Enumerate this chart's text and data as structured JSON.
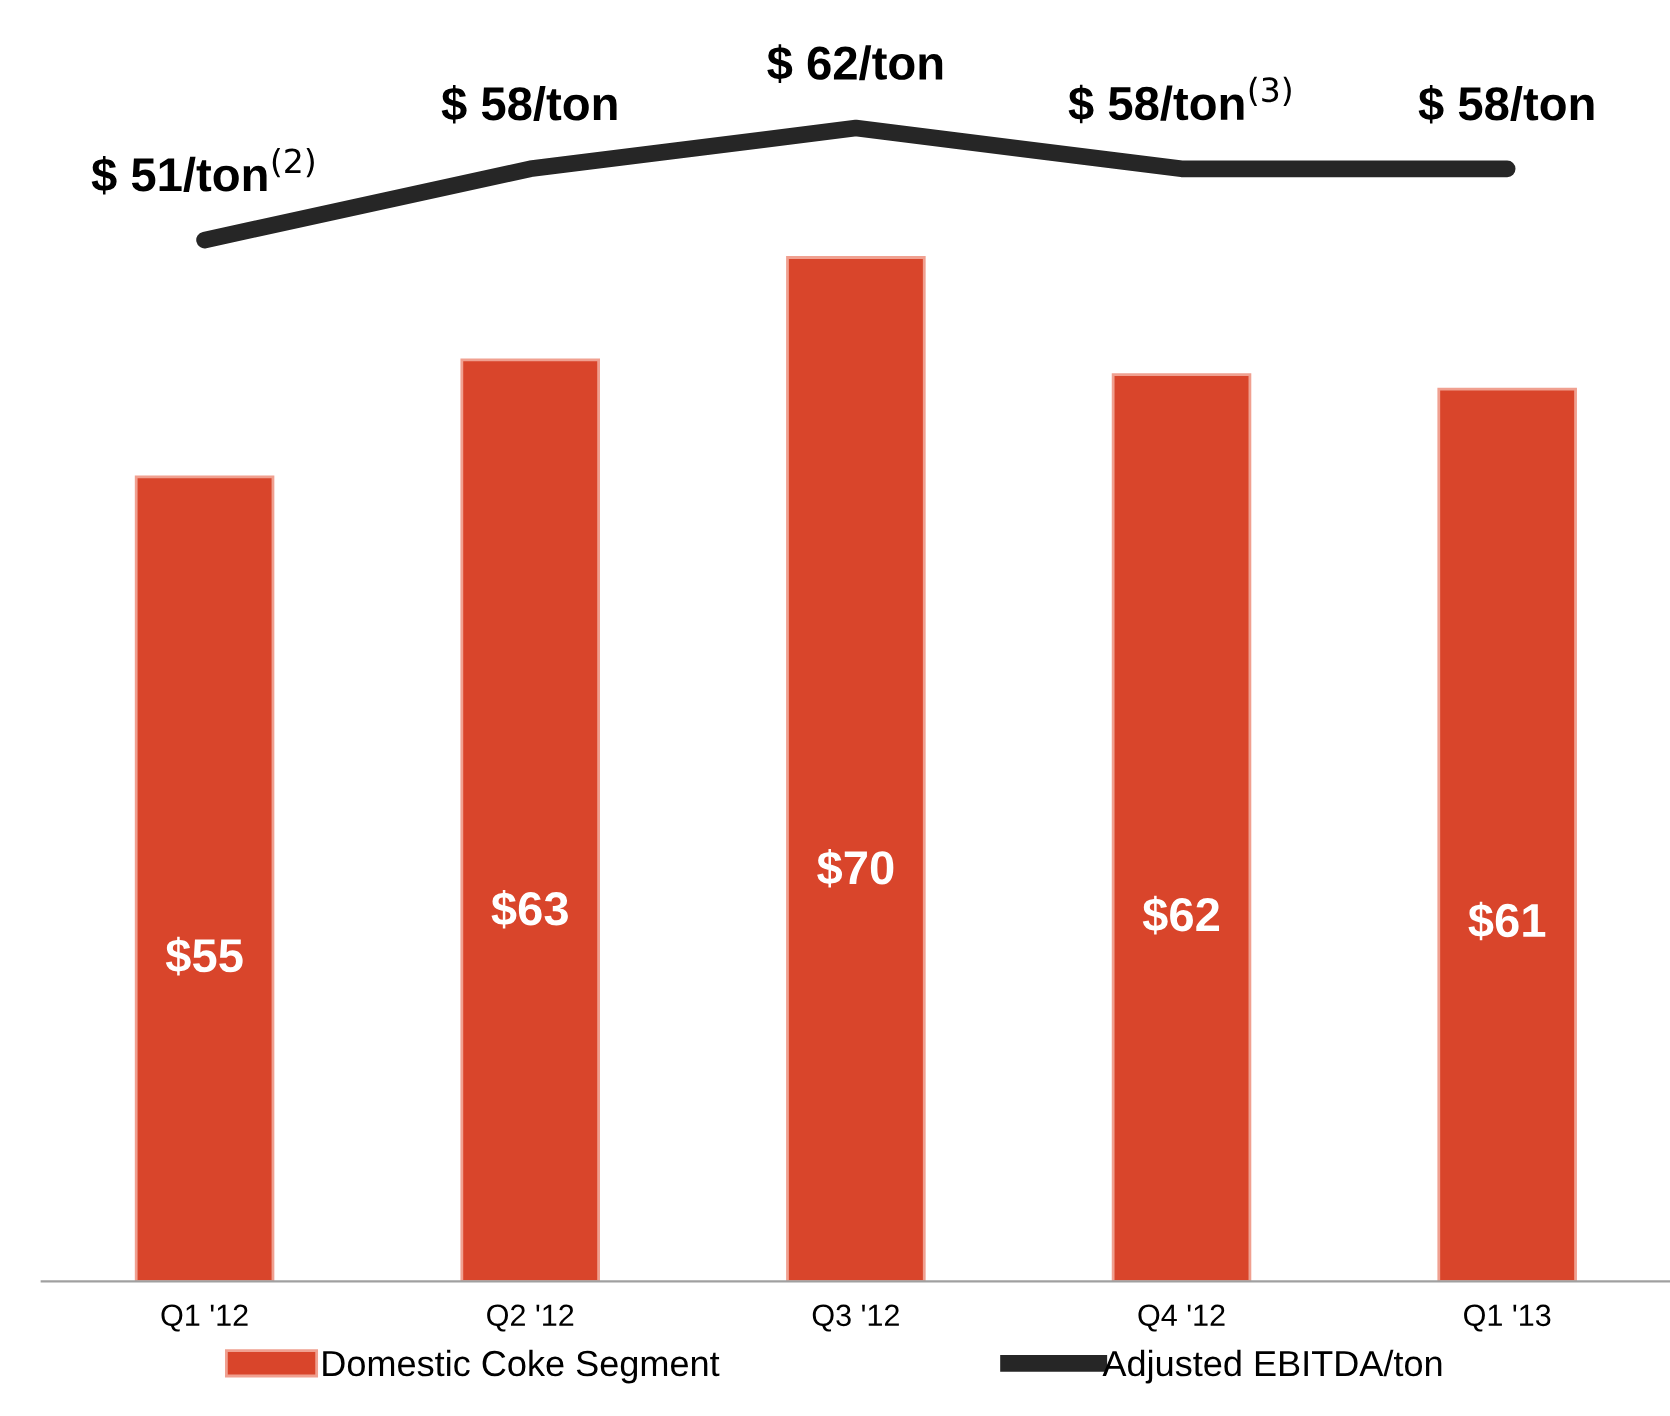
{
  "chart_data": [
    {
      "type": "bar",
      "categories": [
        "Q1 '12",
        "Q2 '12",
        "Q3 '12",
        "Q4 '12",
        "Q1 '13"
      ],
      "series": [
        {
          "name": "Domestic Coke Segment",
          "color": "#d9452b",
          "values": [
            55,
            63,
            70,
            62,
            61
          ],
          "value_labels": [
            "$55",
            "$63",
            "$70",
            "$62",
            "$61"
          ]
        }
      ],
      "tick_labels": "x",
      "legend": "bottom"
    },
    {
      "type": "line",
      "categories": [
        null,
        null,
        null,
        null,
        null
      ],
      "series": [
        {
          "name": "Adjusted EBITDA/ton",
          "color": "#262626",
          "values": [
            51,
            58,
            62,
            58,
            58
          ],
          "value_labels": [
            "$ 51/ton$^{(2)}$",
            "$ 58/ton",
            "$ 62/ton",
            "$ 58/ton$^{(3)}$",
            "$ 58/ton"
          ]
        }
      ],
      "tick_labels": false,
      "legend": "bottom",
      "marker": "none",
      "line_style": "solid"
    }
  ]
}
